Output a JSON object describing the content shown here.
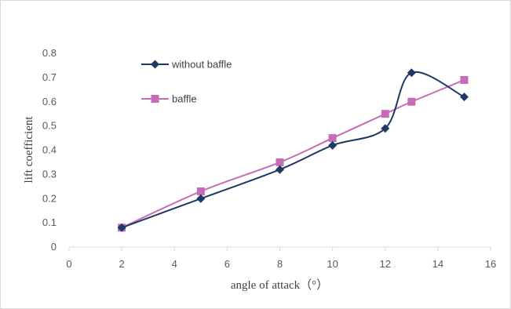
{
  "chart_data": {
    "type": "line",
    "title": "",
    "xlabel": "angle of attack（°）",
    "ylabel": "lift coefficient",
    "xlim": [
      0,
      16
    ],
    "ylim": [
      0,
      0.8
    ],
    "xticks": [
      0,
      2,
      4,
      6,
      8,
      10,
      12,
      14,
      16
    ],
    "yticks": [
      0,
      0.1,
      0.2,
      0.3,
      0.4,
      0.5,
      0.6,
      0.7,
      0.8
    ],
    "grid": false,
    "legend_position": "top-left",
    "smooth": true,
    "series": [
      {
        "name": "without baffle",
        "color": "#1f3864",
        "marker": "diamond",
        "x": [
          2,
          5,
          8,
          10,
          12,
          13,
          15
        ],
        "y": [
          0.08,
          0.2,
          0.32,
          0.42,
          0.49,
          0.72,
          0.62
        ]
      },
      {
        "name": "baffle",
        "color": "#c66bb5",
        "marker": "square",
        "x": [
          2,
          5,
          8,
          10,
          12,
          13,
          15
        ],
        "y": [
          0.08,
          0.23,
          0.35,
          0.45,
          0.55,
          0.6,
          0.69
        ]
      }
    ]
  }
}
